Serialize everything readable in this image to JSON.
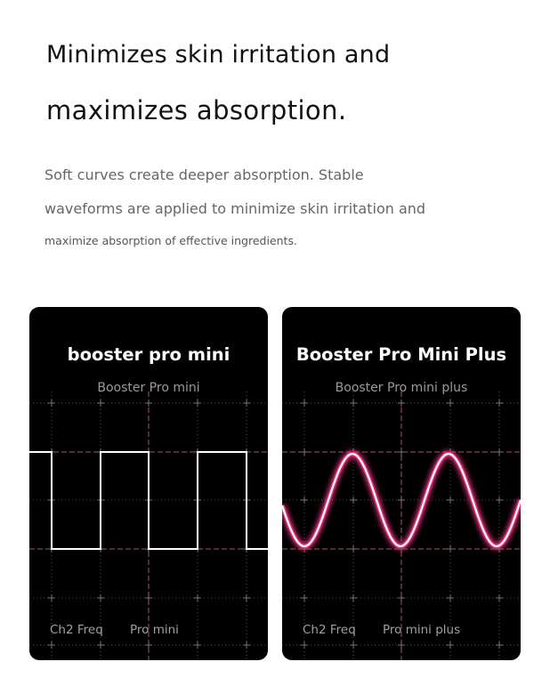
{
  "heading": {
    "line1": "Minimizes skin irritation and",
    "line2": "maximizes absorption."
  },
  "description": {
    "line1": "Soft curves create deeper absorption. Stable",
    "line2": "waveforms are applied to minimize skin irritation and",
    "line3": "maximize absorption of effective ingredients."
  },
  "colors": {
    "card_bg": "#000000",
    "accent_pink": "#e0307a",
    "grid_dashed": "#a8556e"
  },
  "cards": [
    {
      "title": "booster pro mini",
      "subtitle": "Booster Pro mini",
      "label_left": "Ch2 Freq",
      "label_right": "Pro mini",
      "waveform": "square"
    },
    {
      "title": "Booster Pro Mini Plus",
      "subtitle": "Booster Pro mini plus",
      "label_left": "Ch2 Freq",
      "label_right": "Pro mini plus",
      "waveform": "sine"
    }
  ]
}
